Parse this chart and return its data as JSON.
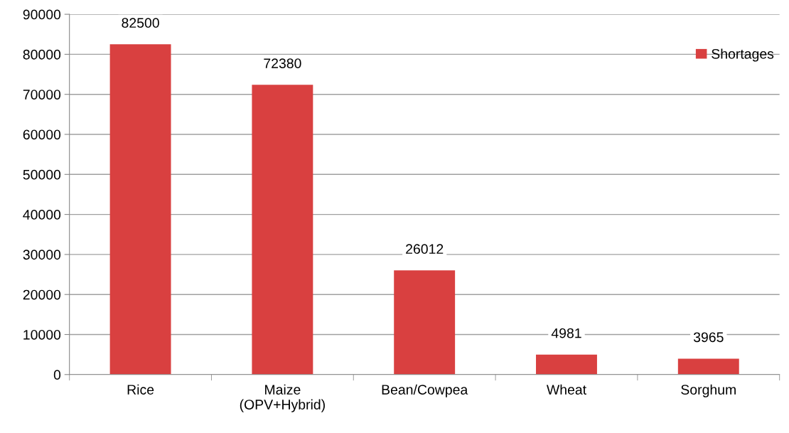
{
  "chart_data": {
    "type": "bar",
    "categories": [
      "Rice",
      "Maize\n(OPV+Hybrid)",
      "Bean/Cowpea",
      "Wheat",
      "Sorghum"
    ],
    "series": [
      {
        "name": "Shortages",
        "color": "#d94040",
        "values": [
          82500,
          72380,
          26012,
          4981,
          3965
        ]
      }
    ],
    "ylim": [
      0,
      90000
    ],
    "yticks": [
      0,
      10000,
      20000,
      30000,
      40000,
      50000,
      60000,
      70000,
      80000,
      90000
    ],
    "grid": "y",
    "legend": "top right",
    "data_labels": true
  }
}
